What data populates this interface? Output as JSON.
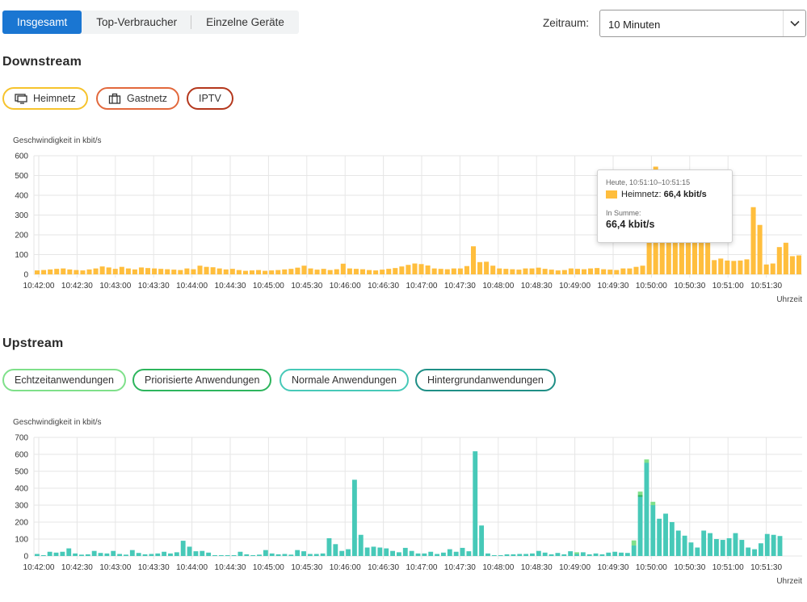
{
  "tabs": [
    {
      "label": "Insgesamt",
      "active": true
    },
    {
      "label": "Top-Verbraucher",
      "active": false
    },
    {
      "label": "Einzelne Geräte",
      "active": false
    }
  ],
  "zeitraum": {
    "label": "Zeitraum:",
    "value": "10 Minuten"
  },
  "downstream": {
    "title": "Downstream",
    "chips": [
      {
        "label": "Heimnetz",
        "color": "#f6c32c",
        "icon": "monitor-icon"
      },
      {
        "label": "Gastnetz",
        "color": "#e2683c",
        "icon": "suitcase-icon"
      },
      {
        "label": "IPTV",
        "color": "#b4371c",
        "icon": ""
      }
    ]
  },
  "upstream": {
    "title": "Upstream",
    "chips": [
      {
        "label": "Echtzeitanwendungen",
        "color": "#7fe08a"
      },
      {
        "label": "Priorisierte Anwendungen",
        "color": "#2db55d"
      },
      {
        "label": "Normale Anwendungen",
        "color": "#47c9b8"
      },
      {
        "label": "Hintergrundanwendungen",
        "color": "#1f8f86"
      }
    ]
  },
  "tooltip": {
    "time": "Heute, 10:51:10–10:51:15",
    "series_label": "Heimnetz:",
    "series_value": "66,4 kbit/s",
    "sum_label": "In Summe:",
    "sum_value": "66,4 kbit/s"
  },
  "chart_data": [
    {
      "type": "bar",
      "title": "",
      "ylabel": "Geschwindigkeit in kbit/s",
      "xlabel": "Uhrzeit",
      "ylim": [
        0,
        600
      ],
      "yticks": [
        0,
        100,
        200,
        300,
        400,
        500,
        600
      ],
      "xticks": [
        "10:42:00",
        "10:42:30",
        "10:43:00",
        "10:43:30",
        "10:44:00",
        "10:44:30",
        "10:45:00",
        "10:45:30",
        "10:46:00",
        "10:46:30",
        "10:47:00",
        "10:47:30",
        "10:48:00",
        "10:48:30",
        "10:49:00",
        "10:49:30",
        "10:50:00",
        "10:50:30",
        "10:51:00",
        "10:51:30"
      ],
      "grid": true,
      "series": [
        {
          "name": "Heimnetz",
          "color": "#ffbe3d",
          "values": [
            20,
            22,
            25,
            28,
            30,
            25,
            22,
            20,
            25,
            30,
            40,
            35,
            28,
            38,
            30,
            25,
            35,
            32,
            30,
            28,
            26,
            24,
            22,
            30,
            26,
            44,
            38,
            36,
            30,
            25,
            28,
            22,
            18,
            20,
            22,
            18,
            20,
            22,
            25,
            28,
            34,
            44,
            30,
            24,
            28,
            22,
            26,
            54,
            30,
            28,
            26,
            22,
            20,
            24,
            28,
            32,
            40,
            48,
            55,
            52,
            45,
            30,
            28,
            26,
            30,
            30,
            42,
            142,
            62,
            64,
            44,
            30,
            28,
            26,
            24,
            30,
            30,
            34,
            28,
            24,
            20,
            22,
            30,
            28,
            26,
            30,
            32,
            26,
            24,
            22,
            30,
            30,
            38,
            44,
            300,
            545,
            300,
            300,
            300,
            300,
            300,
            300,
            300,
            300,
            72,
            80,
            70,
            68,
            70,
            76,
            340,
            250,
            50,
            55,
            138,
            160,
            92,
            96
          ]
        }
      ]
    },
    {
      "type": "bar",
      "title": "",
      "ylabel": "Geschwindigkeit in kbit/s",
      "xlabel": "Uhrzeit",
      "ylim": [
        0,
        700
      ],
      "yticks": [
        0,
        100,
        200,
        300,
        400,
        500,
        600,
        700
      ],
      "xticks": [
        "10:42:00",
        "10:42:30",
        "10:43:00",
        "10:43:30",
        "10:44:00",
        "10:44:30",
        "10:45:00",
        "10:45:30",
        "10:46:00",
        "10:46:30",
        "10:47:00",
        "10:47:30",
        "10:48:00",
        "10:48:30",
        "10:49:00",
        "10:49:30",
        "10:50:00",
        "10:50:30",
        "10:51:00",
        "10:51:30"
      ],
      "grid": true,
      "series": [
        {
          "name": "Echtzeitanwendungen",
          "color": "#7fe08a",
          "values": [
            0,
            0,
            0,
            0,
            0,
            0,
            0,
            0,
            0,
            0,
            0,
            0,
            0,
            0,
            0,
            0,
            0,
            0,
            0,
            0,
            0,
            0,
            0,
            0,
            0,
            0,
            0,
            0,
            0,
            0,
            0,
            0,
            0,
            0,
            0,
            0,
            0,
            0,
            0,
            0,
            0,
            0,
            0,
            0,
            0,
            0,
            0,
            0,
            0,
            0,
            0,
            0,
            0,
            0,
            0,
            0,
            0,
            0,
            0,
            0,
            0,
            0,
            0,
            0,
            0,
            0,
            0,
            0,
            0,
            0,
            0,
            0,
            0,
            0,
            0,
            0,
            0,
            0,
            0,
            0,
            0,
            0,
            0,
            0,
            0,
            10,
            0,
            0,
            0,
            0,
            0,
            0,
            0,
            0,
            30,
            20,
            20,
            20,
            0,
            0,
            0,
            0,
            0,
            0,
            0,
            0,
            0,
            0,
            0,
            0,
            0,
            0,
            0,
            0,
            0,
            0,
            0,
            0,
            0,
            0,
            0
          ]
        },
        {
          "name": "Priorisierte Anwendungen",
          "color": "#2db55d",
          "values": [
            0,
            0,
            0,
            0,
            0,
            0,
            0,
            0,
            0,
            0,
            0,
            0,
            0,
            0,
            0,
            0,
            0,
            0,
            0,
            0,
            0,
            0,
            0,
            0,
            0,
            0,
            0,
            0,
            0,
            0,
            0,
            0,
            0,
            0,
            0,
            0,
            0,
            0,
            0,
            0,
            0,
            0,
            0,
            0,
            0,
            0,
            0,
            0,
            0,
            0,
            0,
            0,
            0,
            0,
            0,
            0,
            0,
            0,
            0,
            0,
            0,
            0,
            0,
            0,
            0,
            0,
            0,
            0,
            0,
            0,
            0,
            0,
            0,
            0,
            0,
            0,
            0,
            0,
            0,
            0,
            0,
            0,
            0,
            0,
            0,
            0,
            0,
            0,
            0,
            0,
            0,
            0,
            0,
            0,
            0,
            10,
            0,
            0,
            0,
            0,
            0,
            0,
            0,
            0,
            0,
            0,
            0,
            0,
            0,
            0,
            0,
            0,
            0,
            0,
            0,
            0,
            0,
            0,
            0,
            0,
            0
          ]
        },
        {
          "name": "Normale Anwendungen",
          "color": "#47c9b8",
          "values": [
            12,
            5,
            25,
            20,
            25,
            45,
            15,
            8,
            10,
            30,
            18,
            15,
            30,
            12,
            8,
            35,
            18,
            10,
            12,
            15,
            25,
            15,
            22,
            90,
            55,
            28,
            30,
            20,
            5,
            5,
            5,
            5,
            25,
            10,
            5,
            8,
            35,
            15,
            10,
            12,
            8,
            35,
            28,
            12,
            12,
            15,
            105,
            70,
            30,
            40,
            450,
            125,
            50,
            55,
            50,
            45,
            30,
            22,
            48,
            30,
            15,
            15,
            25,
            12,
            20,
            40,
            25,
            48,
            28,
            618,
            180,
            15,
            5,
            5,
            10,
            10,
            12,
            12,
            15,
            30,
            20,
            10,
            18,
            10,
            28,
            12,
            22,
            10,
            15,
            10,
            20,
            25,
            20,
            18,
            62,
            350,
            550,
            300,
            220,
            250,
            200,
            150,
            120,
            80,
            50,
            150,
            135,
            100,
            95,
            105,
            135,
            95,
            50,
            40,
            75,
            130,
            125,
            118
          ]
        },
        {
          "name": "Hintergrundanwendungen",
          "color": "#1f8f86",
          "values": [
            0,
            0,
            0,
            0,
            0,
            0,
            0,
            0,
            0,
            0,
            0,
            0,
            0,
            0,
            0,
            0,
            0,
            0,
            0,
            0,
            0,
            0,
            0,
            0,
            0,
            0,
            0,
            0,
            0,
            0,
            0,
            0,
            0,
            0,
            0,
            0,
            0,
            0,
            0,
            0,
            0,
            0,
            0,
            0,
            0,
            0,
            0,
            0,
            0,
            0,
            0,
            0,
            0,
            0,
            0,
            0,
            0,
            0,
            0,
            0,
            0,
            0,
            0,
            0,
            0,
            0,
            0,
            0,
            0,
            0,
            0,
            0,
            0,
            0,
            0,
            0,
            0,
            0,
            0,
            0,
            0,
            0,
            0,
            0,
            0,
            0,
            0,
            0,
            0,
            0,
            0,
            0,
            0,
            0,
            0,
            0,
            0,
            0,
            0,
            0,
            0,
            0,
            0,
            0,
            0,
            0,
            0,
            0,
            0,
            0,
            0,
            0,
            0,
            0,
            0,
            0,
            0,
            0,
            0,
            0,
            0
          ]
        }
      ]
    }
  ]
}
